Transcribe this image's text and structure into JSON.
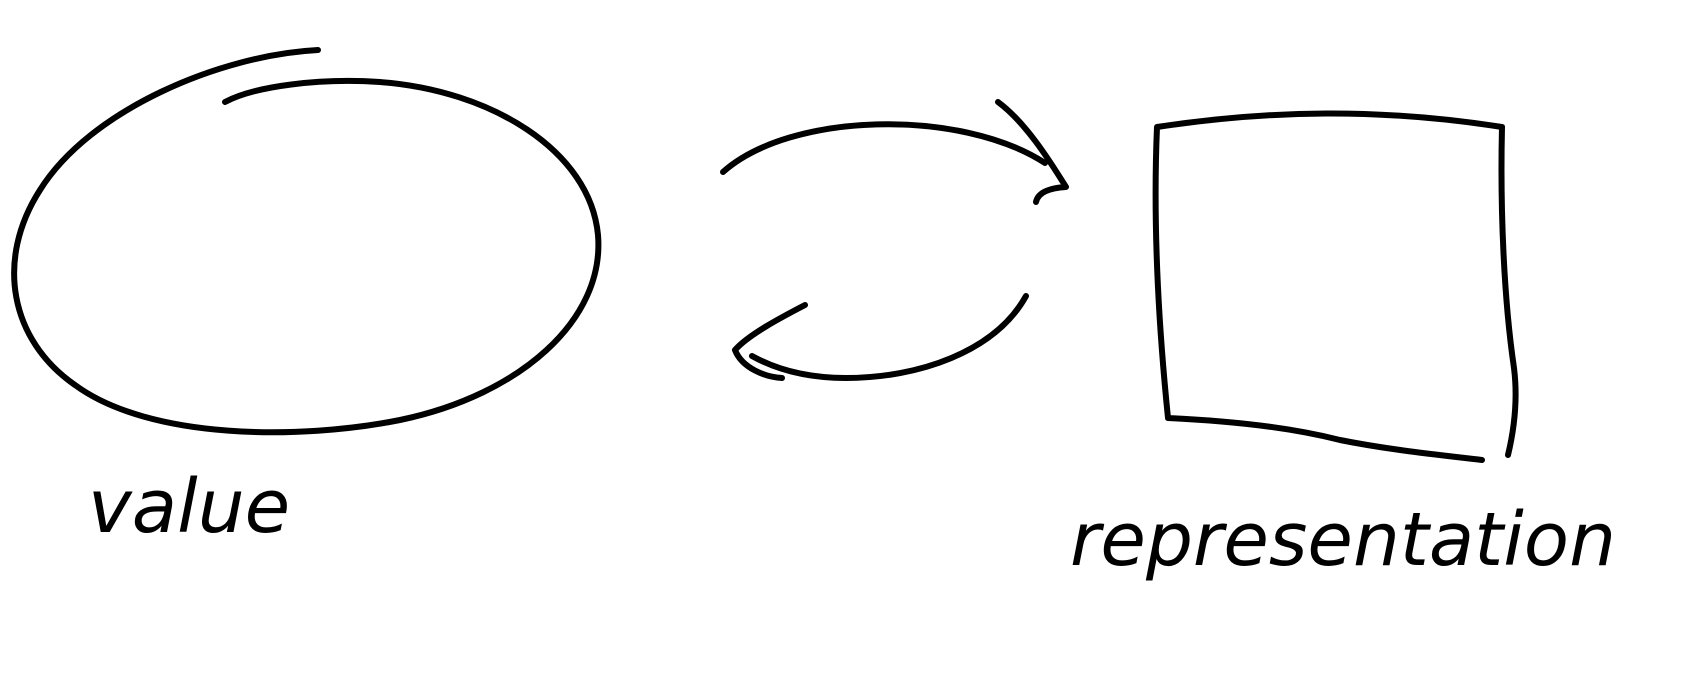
{
  "diagram": {
    "nodes": [
      {
        "id": "value",
        "shape": "ellipse",
        "label": "value"
      },
      {
        "id": "representation",
        "shape": "square",
        "label": "representation"
      }
    ],
    "edges": [
      {
        "from": "value",
        "to": "representation",
        "style": "curved-arrow"
      },
      {
        "from": "representation",
        "to": "value",
        "style": "curved-arrow"
      }
    ],
    "ink_color": "#000000",
    "background_color": "#ffffff"
  }
}
